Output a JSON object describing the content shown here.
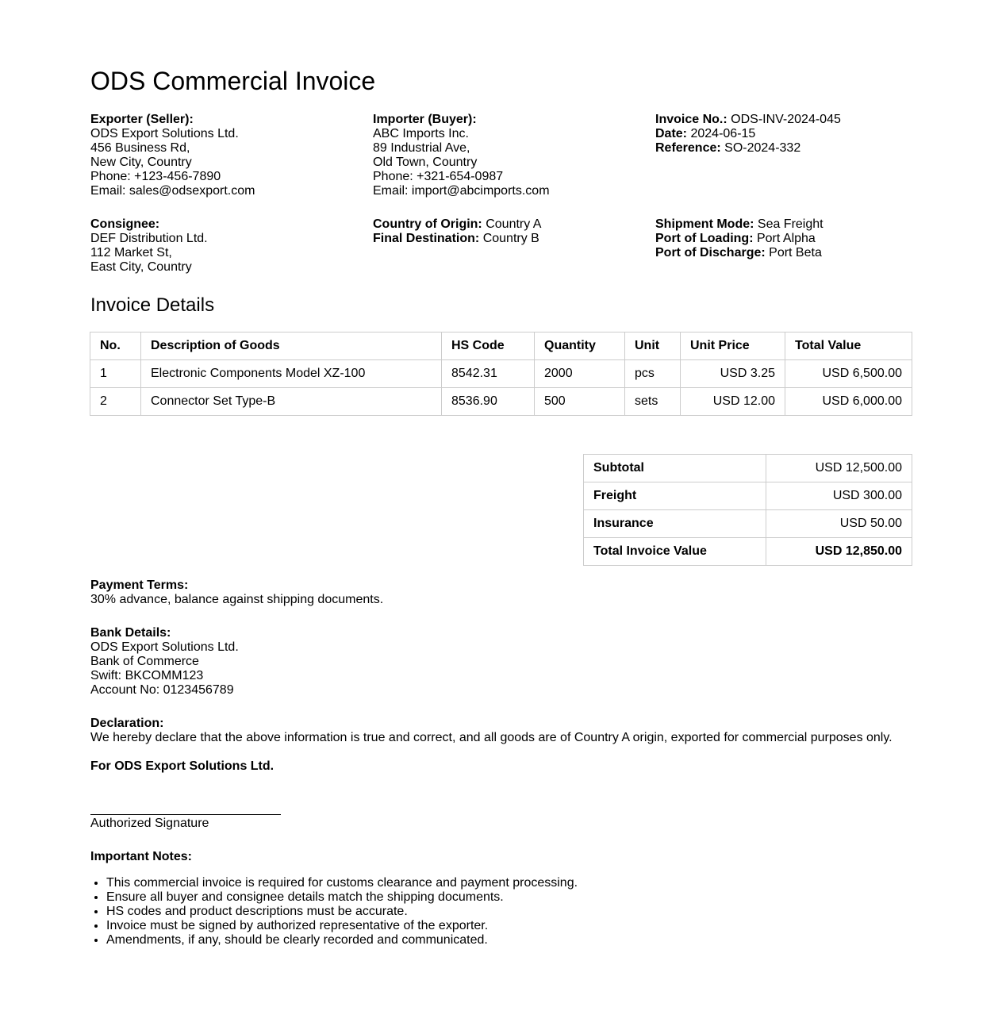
{
  "title": "ODS Commercial Invoice",
  "exporter": {
    "label": "Exporter (Seller):",
    "lines": [
      "ODS Export Solutions Ltd.",
      "456 Business Rd,",
      "New City, Country",
      "Phone: +123-456-7890",
      "Email: sales@odsexport.com"
    ]
  },
  "importer": {
    "label": "Importer (Buyer):",
    "lines": [
      "ABC Imports Inc.",
      "89 Industrial Ave,",
      "Old Town, Country",
      "Phone: +321-654-0987",
      "Email: import@abcimports.com"
    ]
  },
  "invoice_meta": [
    {
      "label": "Invoice No.:",
      "value": "ODS-INV-2024-045"
    },
    {
      "label": "Date:",
      "value": "2024-06-15"
    },
    {
      "label": "Reference:",
      "value": "SO-2024-332"
    }
  ],
  "consignee": {
    "label": "Consignee:",
    "lines": [
      "DEF Distribution Ltd.",
      "112 Market St,",
      "East City, Country"
    ]
  },
  "origin": [
    {
      "label": "Country of Origin:",
      "value": "Country A"
    },
    {
      "label": "Final Destination:",
      "value": "Country B"
    }
  ],
  "shipment": [
    {
      "label": "Shipment Mode:",
      "value": "Sea Freight"
    },
    {
      "label": "Port of Loading:",
      "value": "Port Alpha"
    },
    {
      "label": "Port of Discharge:",
      "value": "Port Beta"
    }
  ],
  "details_heading": "Invoice Details",
  "items_table": {
    "headers": [
      "No.",
      "Description of Goods",
      "HS Code",
      "Quantity",
      "Unit",
      "Unit Price",
      "Total Value"
    ],
    "rows": [
      [
        "1",
        "Electronic Components Model XZ-100",
        "8542.31",
        "2000",
        "pcs",
        "USD 3.25",
        "USD 6,500.00"
      ],
      [
        "2",
        "Connector Set Type-B",
        "8536.90",
        "500",
        "sets",
        "USD 12.00",
        "USD 6,000.00"
      ]
    ]
  },
  "summary": [
    {
      "label": "Subtotal",
      "value": "USD 12,500.00"
    },
    {
      "label": "Freight",
      "value": "USD 300.00"
    },
    {
      "label": "Insurance",
      "value": "USD 50.00"
    },
    {
      "label": "Total Invoice Value",
      "value": "USD 12,850.00"
    }
  ],
  "payment": {
    "label": "Payment Terms:",
    "text": "30% advance, balance against shipping documents."
  },
  "bank": {
    "label": "Bank Details:",
    "lines": [
      "ODS Export Solutions Ltd.",
      "Bank of Commerce",
      "Swift: BKCOMM123",
      "Account No: 0123456789"
    ]
  },
  "declaration": {
    "label": "Declaration:",
    "text": "We hereby declare that the above information is true and correct, and all goods are of Country A origin, exported for commercial purposes only."
  },
  "signoff": "For ODS Export Solutions Ltd.",
  "signature_label": "Authorized Signature",
  "notes": {
    "label": "Important Notes:",
    "items": [
      "This commercial invoice is required for customs clearance and payment processing.",
      "Ensure all buyer and consignee details match the shipping documents.",
      "HS codes and product descriptions must be accurate.",
      "Invoice must be signed by authorized representative of the exporter.",
      "Amendments, if any, should be clearly recorded and communicated."
    ]
  }
}
